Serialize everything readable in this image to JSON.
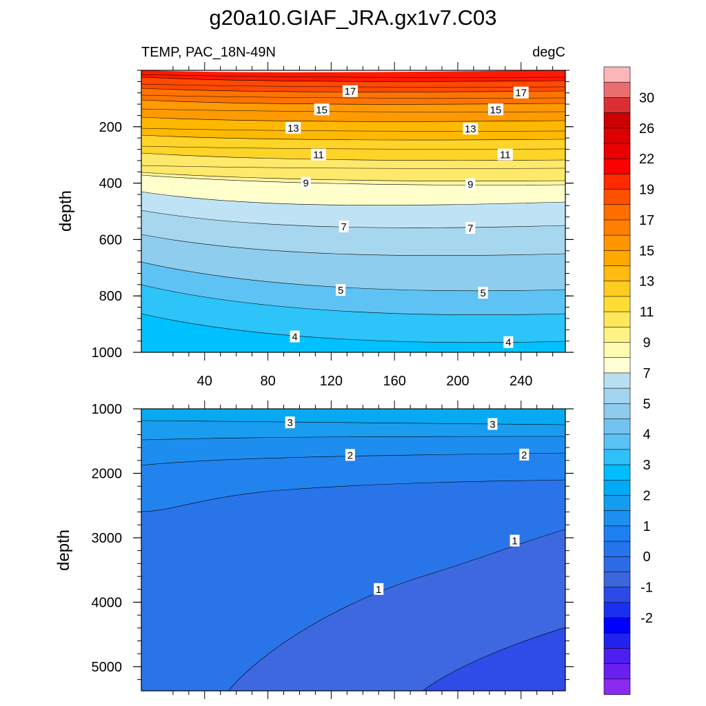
{
  "chart_data": {
    "type": "heatmap",
    "title": "g20a10.GIAF_JRA.gx1v7.C03",
    "subtitle_left": "TEMP, PAC_18N-49N",
    "subtitle_right": "degC",
    "colorbar": {
      "labels": [
        "30",
        "26",
        "22",
        "19",
        "17",
        "15",
        "13",
        "11",
        "9",
        "7",
        "5",
        "4",
        "3",
        "2",
        "1",
        "0",
        "-1",
        "-2"
      ],
      "colors": [
        "#fbb6b8",
        "#ea6e70",
        "#da3035",
        "#cc0000",
        "#dd0000",
        "#ea0000",
        "#ff0000",
        "#ff2a00",
        "#ff5000",
        "#ff6e00",
        "#ff8000",
        "#ff9500",
        "#ffa800",
        "#ffbb10",
        "#ffcc22",
        "#ffdd33",
        "#ffe85a",
        "#fff284",
        "#fffbb0",
        "#ffffd6",
        "#b8e0f2",
        "#a4d4ee",
        "#8ecbed",
        "#72c3ef",
        "#5cc1f5",
        "#2ec0f8",
        "#00bdfe",
        "#00aaf5",
        "#139cf0",
        "#1e8ef0",
        "#1d80f2",
        "#2574ec",
        "#2d6ae6",
        "#3b66dc",
        "#2d4ae8",
        "#1a30f0",
        "#0000ff",
        "#2222ee",
        "#4c1ef0",
        "#6a20f0",
        "#8a2af0"
      ]
    },
    "panels": [
      {
        "name": "upper",
        "ylabel": "depth",
        "xlabel": "",
        "ylim": [
          1000,
          0
        ],
        "xlim": [
          0,
          268
        ],
        "yticks": [
          200,
          400,
          600,
          800,
          1000
        ],
        "xticks": [
          40,
          80,
          120,
          160,
          200,
          240
        ],
        "contour_labels": [
          {
            "text": "17",
            "x": 132,
            "depth": 75
          },
          {
            "text": "17",
            "x": 240,
            "depth": 80
          },
          {
            "text": "15",
            "x": 114,
            "depth": 140
          },
          {
            "text": "15",
            "x": 224,
            "depth": 140
          },
          {
            "text": "13",
            "x": 96,
            "depth": 205
          },
          {
            "text": "13",
            "x": 208,
            "depth": 208
          },
          {
            "text": "11",
            "x": 112,
            "depth": 300
          },
          {
            "text": "11",
            "x": 230,
            "depth": 300
          },
          {
            "text": "9",
            "x": 104,
            "depth": 400
          },
          {
            "text": "9",
            "x": 208,
            "depth": 405
          },
          {
            "text": "7",
            "x": 128,
            "depth": 555
          },
          {
            "text": "7",
            "x": 208,
            "depth": 560
          },
          {
            "text": "5",
            "x": 126,
            "depth": 780
          },
          {
            "text": "5",
            "x": 216,
            "depth": 790
          },
          {
            "text": "4",
            "x": 97,
            "depth": 945
          },
          {
            "text": "4",
            "x": 232,
            "depth": 965
          }
        ]
      },
      {
        "name": "lower",
        "ylabel": "depth",
        "xlabel": "",
        "ylim": [
          5375,
          1000
        ],
        "xlim": [
          0,
          268
        ],
        "yticks": [
          1000,
          2000,
          3000,
          4000,
          5000
        ],
        "xticks": [],
        "contour_labels": [
          {
            "text": "3",
            "x": 94,
            "depth": 1215
          },
          {
            "text": "3",
            "x": 222,
            "depth": 1240
          },
          {
            "text": "2",
            "x": 132,
            "depth": 1720
          },
          {
            "text": "2",
            "x": 242,
            "depth": 1715
          },
          {
            "text": "1",
            "x": 236,
            "depth": 3050
          },
          {
            "text": "1",
            "x": 150,
            "depth": 3800
          }
        ]
      }
    ]
  }
}
